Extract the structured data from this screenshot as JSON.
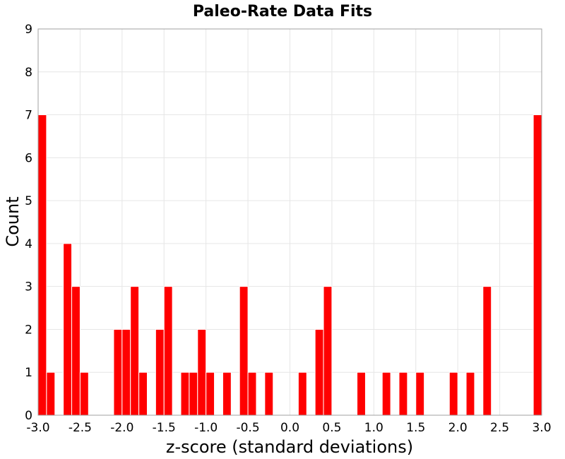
{
  "chart_data": {
    "type": "bar",
    "title": "Paleo-Rate Data Fits",
    "xlabel": "z-score (standard deviations)",
    "ylabel": "Count",
    "xlim": [
      -3.0,
      3.0
    ],
    "ylim": [
      0,
      9
    ],
    "bin_width": 0.1,
    "grid": true,
    "bar_color": "#ff0000",
    "x_ticks": [
      "-3.0",
      "-2.5",
      "-2.0",
      "-1.5",
      "-1.0",
      "-0.5",
      "0.0",
      "0.5",
      "1.0",
      "1.5",
      "2.0",
      "2.5",
      "3.0"
    ],
    "y_ticks": [
      "0",
      "1",
      "2",
      "3",
      "4",
      "5",
      "6",
      "7",
      "8",
      "9"
    ],
    "bins": [
      {
        "x": -2.95,
        "count": 7
      },
      {
        "x": -2.85,
        "count": 1
      },
      {
        "x": -2.65,
        "count": 4
      },
      {
        "x": -2.55,
        "count": 3
      },
      {
        "x": -2.45,
        "count": 1
      },
      {
        "x": -2.05,
        "count": 2
      },
      {
        "x": -1.95,
        "count": 2
      },
      {
        "x": -1.85,
        "count": 3
      },
      {
        "x": -1.75,
        "count": 1
      },
      {
        "x": -1.55,
        "count": 2
      },
      {
        "x": -1.45,
        "count": 3
      },
      {
        "x": -1.25,
        "count": 1
      },
      {
        "x": -1.15,
        "count": 1
      },
      {
        "x": -1.05,
        "count": 2
      },
      {
        "x": -0.95,
        "count": 1
      },
      {
        "x": -0.75,
        "count": 1
      },
      {
        "x": -0.55,
        "count": 3
      },
      {
        "x": -0.45,
        "count": 1
      },
      {
        "x": -0.25,
        "count": 1
      },
      {
        "x": 0.15,
        "count": 1
      },
      {
        "x": 0.35,
        "count": 2
      },
      {
        "x": 0.45,
        "count": 3
      },
      {
        "x": 0.85,
        "count": 1
      },
      {
        "x": 1.15,
        "count": 1
      },
      {
        "x": 1.35,
        "count": 1
      },
      {
        "x": 1.55,
        "count": 1
      },
      {
        "x": 1.95,
        "count": 1
      },
      {
        "x": 2.15,
        "count": 1
      },
      {
        "x": 2.35,
        "count": 3
      },
      {
        "x": 2.95,
        "count": 7
      }
    ]
  }
}
